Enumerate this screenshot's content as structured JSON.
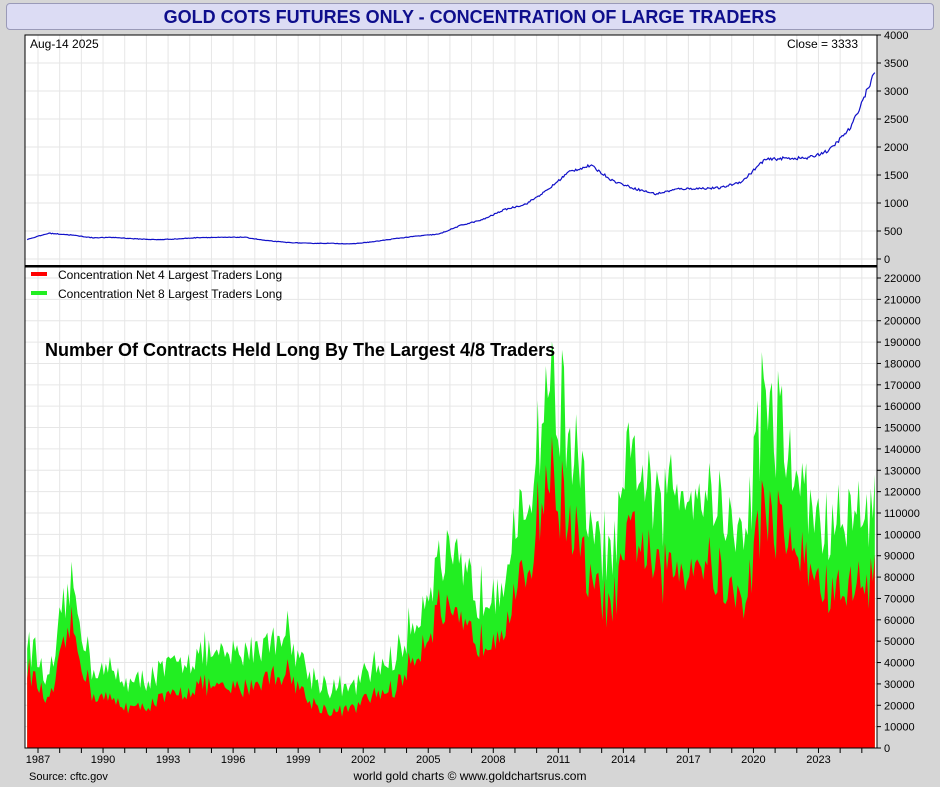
{
  "title": "GOLD COTS FUTURES ONLY - CONCENTRATION OF LARGE TRADERS",
  "footer": {
    "source": "Source: cftc.gov",
    "credit": "world gold charts © www.goldchartsrus.com"
  },
  "colors": {
    "price_line": "#1010c8",
    "net4": "#ff0000",
    "net8": "#22ee22",
    "grid": "#e6e6e6",
    "title_text": "#0e0e8c"
  },
  "chart_data": [
    {
      "type": "line",
      "panel": "price",
      "date_label": "Aug-14  2025",
      "close_label": "Close = 3333",
      "ylim": [
        0,
        4000
      ],
      "yticks": [
        0,
        500,
        1000,
        1500,
        2000,
        2500,
        3000,
        3500,
        4000
      ],
      "x": [
        1986.5,
        1987.5,
        1988.5,
        1989.5,
        1990.5,
        1991.5,
        1992.5,
        1993.5,
        1994.5,
        1995.5,
        1996.5,
        1997.5,
        1998.5,
        1999.5,
        2000.5,
        2001.5,
        2002.5,
        2003.5,
        2004.5,
        2005.5,
        2006.5,
        2007.5,
        2008.5,
        2009.5,
        2010.5,
        2011.5,
        2012.5,
        2013.5,
        2014.5,
        2015.5,
        2016.5,
        2017.5,
        2018.5,
        2019.5,
        2020.5,
        2021.5,
        2022.5,
        2023.5,
        2024.5,
        2025.6
      ],
      "values": [
        350,
        460,
        430,
        380,
        385,
        360,
        345,
        360,
        385,
        385,
        390,
        330,
        295,
        280,
        280,
        270,
        310,
        365,
        410,
        445,
        600,
        700,
        880,
        980,
        1230,
        1560,
        1670,
        1400,
        1260,
        1160,
        1250,
        1260,
        1270,
        1390,
        1770,
        1800,
        1800,
        1940,
        2350,
        3333
      ]
    },
    {
      "type": "area",
      "panel": "concentration",
      "subtitle": "Number Of Contracts Held Long By The Largest 4/8 Traders",
      "ylim": [
        0,
        220000
      ],
      "yticks": [
        0,
        10000,
        20000,
        30000,
        40000,
        50000,
        60000,
        70000,
        80000,
        90000,
        100000,
        110000,
        120000,
        130000,
        140000,
        150000,
        160000,
        170000,
        180000,
        190000,
        200000,
        210000,
        220000
      ],
      "xticks": [
        "1987",
        "1990",
        "1993",
        "1996",
        "1999",
        "2002",
        "2005",
        "2008",
        "2011",
        "2014",
        "2017",
        "2020",
        "2023"
      ],
      "x": [
        1986.5,
        1987.5,
        1988.5,
        1989.5,
        1990.5,
        1991.5,
        1992.5,
        1993.5,
        1994.5,
        1995.5,
        1996.5,
        1997.5,
        1998.5,
        1999.5,
        2000.5,
        2001.5,
        2002.5,
        2003.5,
        2004.5,
        2005.5,
        2006.5,
        2007.5,
        2008.5,
        2009.5,
        2010.5,
        2011.5,
        2012.5,
        2013.5,
        2014.5,
        2015.5,
        2016.5,
        2017.5,
        2018.5,
        2019.5,
        2020.5,
        2021.5,
        2022.5,
        2023.5,
        2024.5,
        2025.6
      ],
      "series": [
        {
          "name": "Concentration Net 4 Largest Traders Long",
          "values": [
            38000,
            20000,
            58000,
            25000,
            22000,
            18000,
            22000,
            25000,
            30000,
            27000,
            28000,
            33000,
            36000,
            22000,
            17000,
            18000,
            25000,
            28000,
            45000,
            65000,
            55000,
            50000,
            60000,
            80000,
            130000,
            110000,
            75000,
            65000,
            105000,
            80000,
            85000,
            90000,
            80000,
            65000,
            115000,
            100000,
            85000,
            72000,
            75000,
            80000
          ]
        },
        {
          "name": "Concentration Net 8 Largest Traders Long",
          "values": [
            52000,
            30000,
            78000,
            38000,
            35000,
            30000,
            35000,
            40000,
            45000,
            42000,
            45000,
            50000,
            55000,
            35000,
            28000,
            28000,
            38000,
            42000,
            62000,
            90000,
            80000,
            72000,
            85000,
            108000,
            175000,
            150000,
            100000,
            88000,
            140000,
            110000,
            125000,
            125000,
            115000,
            95000,
            170000,
            140000,
            115000,
            100000,
            110000,
            115000
          ]
        }
      ]
    }
  ]
}
